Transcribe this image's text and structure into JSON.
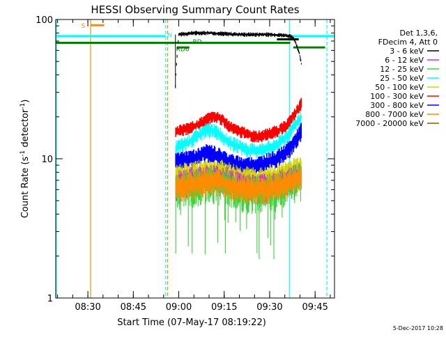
{
  "chart_data": {
    "type": "line",
    "title": "HESSI Observing Summary Count Rates",
    "xlabel": "Start Time (07-May-17 08:19:22)",
    "ylabel_main": "Count Rate (s",
    "ylabel_sup1": "-1",
    "ylabel_mid": " detector",
    "ylabel_sup2": "-1",
    "ylabel_end": ")",
    "y_scale": "log",
    "xlim_minutes": [
      499.4,
      591.4
    ],
    "ylim": [
      1,
      100
    ],
    "x_ticks": [
      {
        "label": "08:30",
        "minutes": 510
      },
      {
        "label": "08:45",
        "minutes": 525
      },
      {
        "label": "09:00",
        "minutes": 540
      },
      {
        "label": "09:15",
        "minutes": 555
      },
      {
        "label": "09:30",
        "minutes": 570
      },
      {
        "label": "09:45",
        "minutes": 585
      }
    ],
    "y_ticks": [
      {
        "label": "1",
        "value": 1
      },
      {
        "label": "10",
        "value": 10
      },
      {
        "label": "100",
        "value": 100
      }
    ],
    "legend": {
      "header": [
        "Det 1,3,6,",
        "FDecim 4, Att 0"
      ],
      "entries": [
        {
          "label": "3 - 6 keV",
          "color": "#000000"
        },
        {
          "label": "6 - 12 keV",
          "color": "#d42fd4"
        },
        {
          "label": "12 - 25 keV",
          "color": "#3cd43c"
        },
        {
          "label": "25 - 50 keV",
          "color": "#00ffff"
        },
        {
          "label": "50 - 100 keV",
          "color": "#d4d400"
        },
        {
          "label": "100 - 300 keV",
          "color": "#ff0000"
        },
        {
          "label": "300 - 800 keV",
          "color": "#0000ff"
        },
        {
          "label": "800 - 7000 keV",
          "color": "#ff8c00"
        },
        {
          "label": "7000 - 20000 keV",
          "color": "#8c5a00"
        }
      ]
    },
    "series": [
      {
        "name": "3 - 6 keV",
        "color": "#000000",
        "x": [
          538.9,
          540,
          545,
          550,
          555,
          560,
          565,
          570,
          575,
          576.5,
          578.0,
          579.5,
          580.5
        ],
        "y": [
          33,
          78,
          80,
          80,
          79,
          78,
          78,
          78,
          77,
          76,
          73,
          60,
          48
        ]
      },
      {
        "name": "100 - 300 keV",
        "color": "#ff0000",
        "x": [
          539,
          541,
          543,
          545,
          547,
          549,
          551,
          553,
          555,
          557,
          559,
          561,
          563,
          565,
          567,
          569,
          571,
          573,
          575,
          577,
          579,
          580.5
        ],
        "y": [
          16,
          16,
          16.5,
          17,
          18,
          19,
          20,
          20,
          18.5,
          17,
          16,
          15.5,
          15,
          14.5,
          14.5,
          15,
          15.5,
          16,
          17,
          19,
          22,
          25
        ]
      },
      {
        "name": "25 - 50 keV",
        "color": "#00ffff",
        "x": [
          539,
          541,
          543,
          545,
          547,
          549,
          551,
          553,
          555,
          557,
          559,
          561,
          563,
          565,
          567,
          569,
          571,
          573,
          575,
          577,
          579,
          580.5
        ],
        "y": [
          12,
          12.5,
          13,
          14,
          15,
          16,
          16,
          15.5,
          14,
          13,
          12.5,
          12,
          11.5,
          11.5,
          11.5,
          12,
          12,
          13,
          14,
          16,
          18,
          20
        ]
      },
      {
        "name": "300 - 800 keV",
        "color": "#0000ff",
        "x": [
          539,
          541,
          543,
          545,
          547,
          549,
          551,
          553,
          555,
          557,
          559,
          561,
          563,
          565,
          567,
          569,
          571,
          573,
          575,
          577,
          579,
          580.5
        ],
        "y": [
          9.5,
          9.8,
          10,
          10.2,
          10.5,
          11,
          11,
          10.5,
          10,
          9.5,
          9.2,
          9,
          9,
          9,
          9.2,
          9.5,
          9.8,
          10.2,
          11,
          12,
          14,
          16
        ]
      },
      {
        "name": "50 - 100 keV",
        "color": "#d4d400",
        "x": [
          539,
          542,
          545,
          548,
          551,
          554,
          557,
          560,
          563,
          566,
          569,
          572,
          575,
          578,
          580.5
        ],
        "y": [
          7.5,
          7.8,
          8,
          8.2,
          8.4,
          8.2,
          7.8,
          7.5,
          7.3,
          7.2,
          7.3,
          7.5,
          8,
          8.5,
          9
        ]
      },
      {
        "name": "6 - 12 keV",
        "color": "#d42fd4",
        "x": [
          539,
          542,
          545,
          548,
          551,
          554,
          557,
          560,
          563,
          566,
          569,
          572,
          575,
          578,
          580.5
        ],
        "y": [
          6.5,
          6.8,
          7,
          7.2,
          7.3,
          7.2,
          6.8,
          6.5,
          6.3,
          6.2,
          6.3,
          6.5,
          6.8,
          7.2,
          7.5
        ]
      },
      {
        "name": "12 - 25 keV",
        "color": "#3cd43c",
        "x": [
          539,
          542,
          545,
          548,
          551,
          554,
          557,
          560,
          563,
          566,
          569,
          572,
          575,
          578,
          580.5
        ],
        "y": [
          6,
          6.2,
          6.4,
          6.6,
          6.8,
          6.6,
          6.2,
          6,
          5.8,
          5.8,
          5.9,
          6,
          6.3,
          6.8,
          7.2
        ]
      },
      {
        "name": "800 - 7000 keV",
        "color": "#ff8c00",
        "x": [
          539,
          542,
          545,
          548,
          551,
          554,
          557,
          560,
          563,
          566,
          569,
          572,
          575,
          578,
          580.5
        ],
        "y": [
          6.2,
          6.4,
          6.6,
          6.8,
          7,
          6.8,
          6.5,
          6.3,
          6.1,
          6,
          6.1,
          6.3,
          6.6,
          7,
          7.4
        ]
      }
    ],
    "markers": {
      "vertical_lines": [
        {
          "minutes": 499.6,
          "color": "#00ffff",
          "style": "solid"
        },
        {
          "minutes": 510.9,
          "color": "#ff8c00",
          "style": "solid"
        },
        {
          "minutes": 535.7,
          "color": "#00ffff",
          "style": "dashed"
        },
        {
          "minutes": 536.3,
          "color": "#ff8c00",
          "style": "dashed"
        },
        {
          "minutes": 576.6,
          "color": "#00ffff",
          "style": "solid"
        },
        {
          "minutes": 588.9,
          "color": "#00ffff",
          "style": "dashed"
        }
      ],
      "bars": [
        {
          "x0": 499.4,
          "x1": 535.7,
          "value": 76,
          "color": "#00ffff"
        },
        {
          "x0": 576.6,
          "x1": 591.4,
          "value": 76,
          "color": "#00ffff"
        },
        {
          "x0": 499.4,
          "x1": 576.8,
          "value": 68,
          "color": "#008000"
        },
        {
          "x0": 577.8,
          "x1": 588.3,
          "value": 63,
          "color": "#008000"
        },
        {
          "x0": 510.9,
          "x1": 515.4,
          "value": 91,
          "color": "#ff8c00"
        },
        {
          "x0": 539.8,
          "x1": 543.5,
          "value": 63,
          "color": "#008000"
        },
        {
          "x0": 572.4,
          "x1": 579.6,
          "value": 72,
          "color": "#000000"
        }
      ],
      "labels": [
        {
          "text": "S",
          "minutes": 507.8,
          "value": 91,
          "color": "#ff8c00"
        },
        {
          "text": "N",
          "minutes": 536.3,
          "value": 78,
          "color": "#00ffff"
        },
        {
          "text": "RD",
          "minutes": 544.6,
          "value": 70,
          "color": "#008000"
        },
        {
          "text": "RD6",
          "minutes": 539.1,
          "value": 62,
          "color": "#008000"
        }
      ]
    }
  },
  "footer": {
    "timestamp": "5-Dec-2017 10:28"
  }
}
